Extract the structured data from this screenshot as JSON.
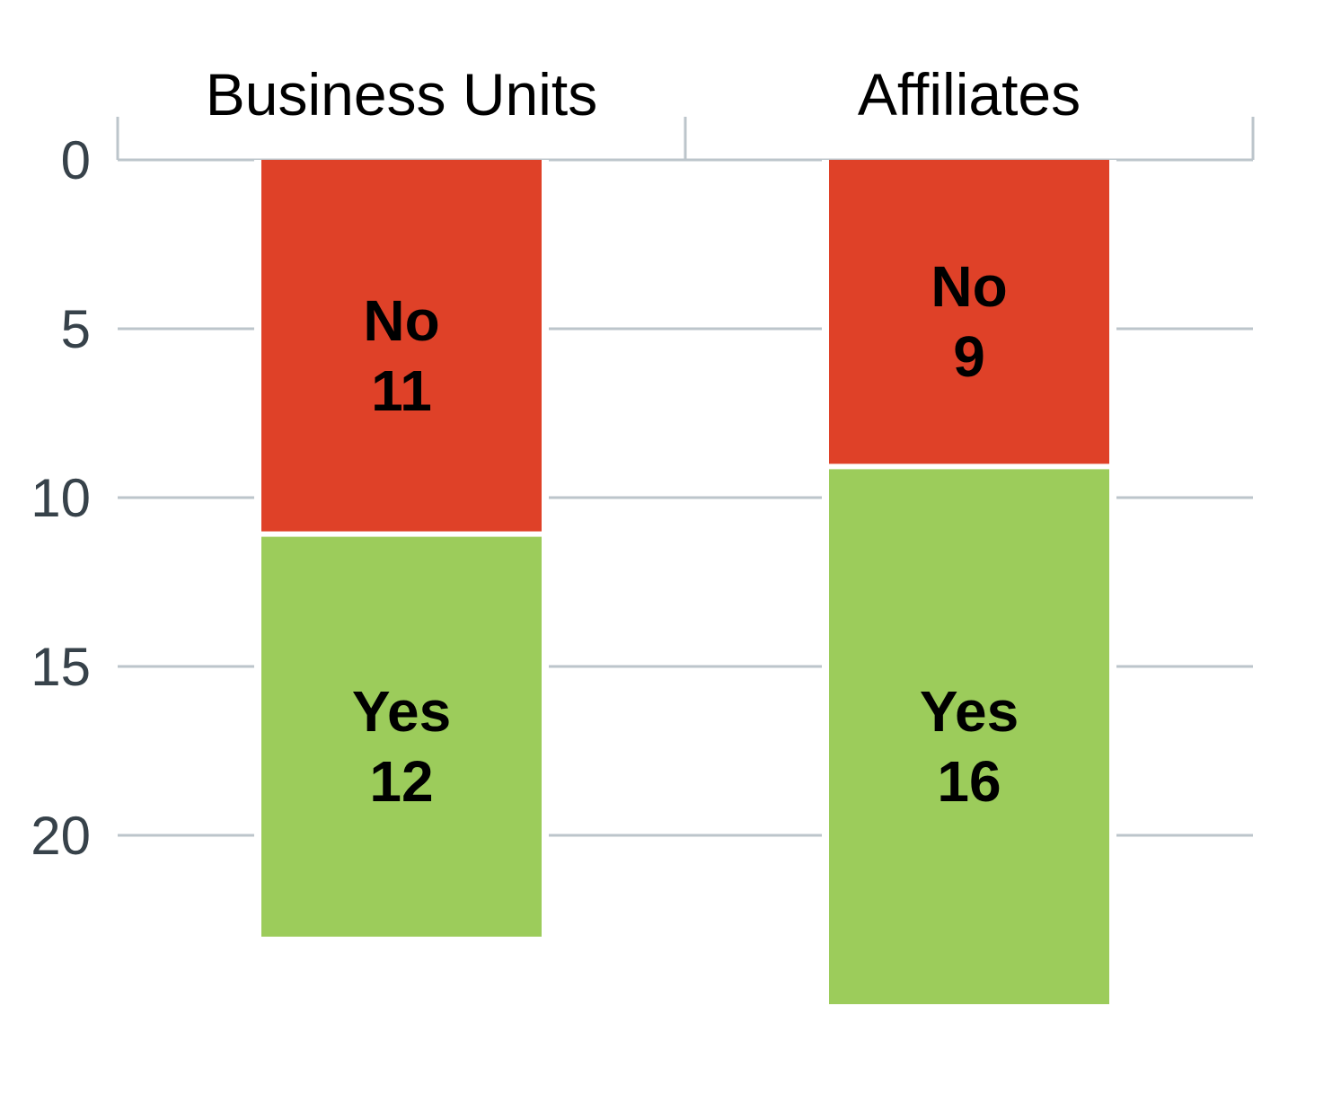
{
  "chart_data": {
    "type": "bar",
    "stacked": true,
    "orientation": "vertical",
    "y_axis_inverted": true,
    "categories": [
      "Business Units",
      "Affiliates"
    ],
    "series": [
      {
        "name": "No",
        "values": [
          11,
          9
        ],
        "color": "#df4128"
      },
      {
        "name": "Yes",
        "values": [
          12,
          16
        ],
        "color": "#9ccc5b"
      }
    ],
    "y_ticks": [
      "0",
      "5",
      "10",
      "15",
      "20"
    ],
    "ylim": [
      0,
      25
    ],
    "grid": true,
    "category_axis_position": "top",
    "gridline_color": "#bcc5cb",
    "axis_color": "#bcc5cb",
    "title": "",
    "xlabel": "",
    "ylabel": ""
  }
}
